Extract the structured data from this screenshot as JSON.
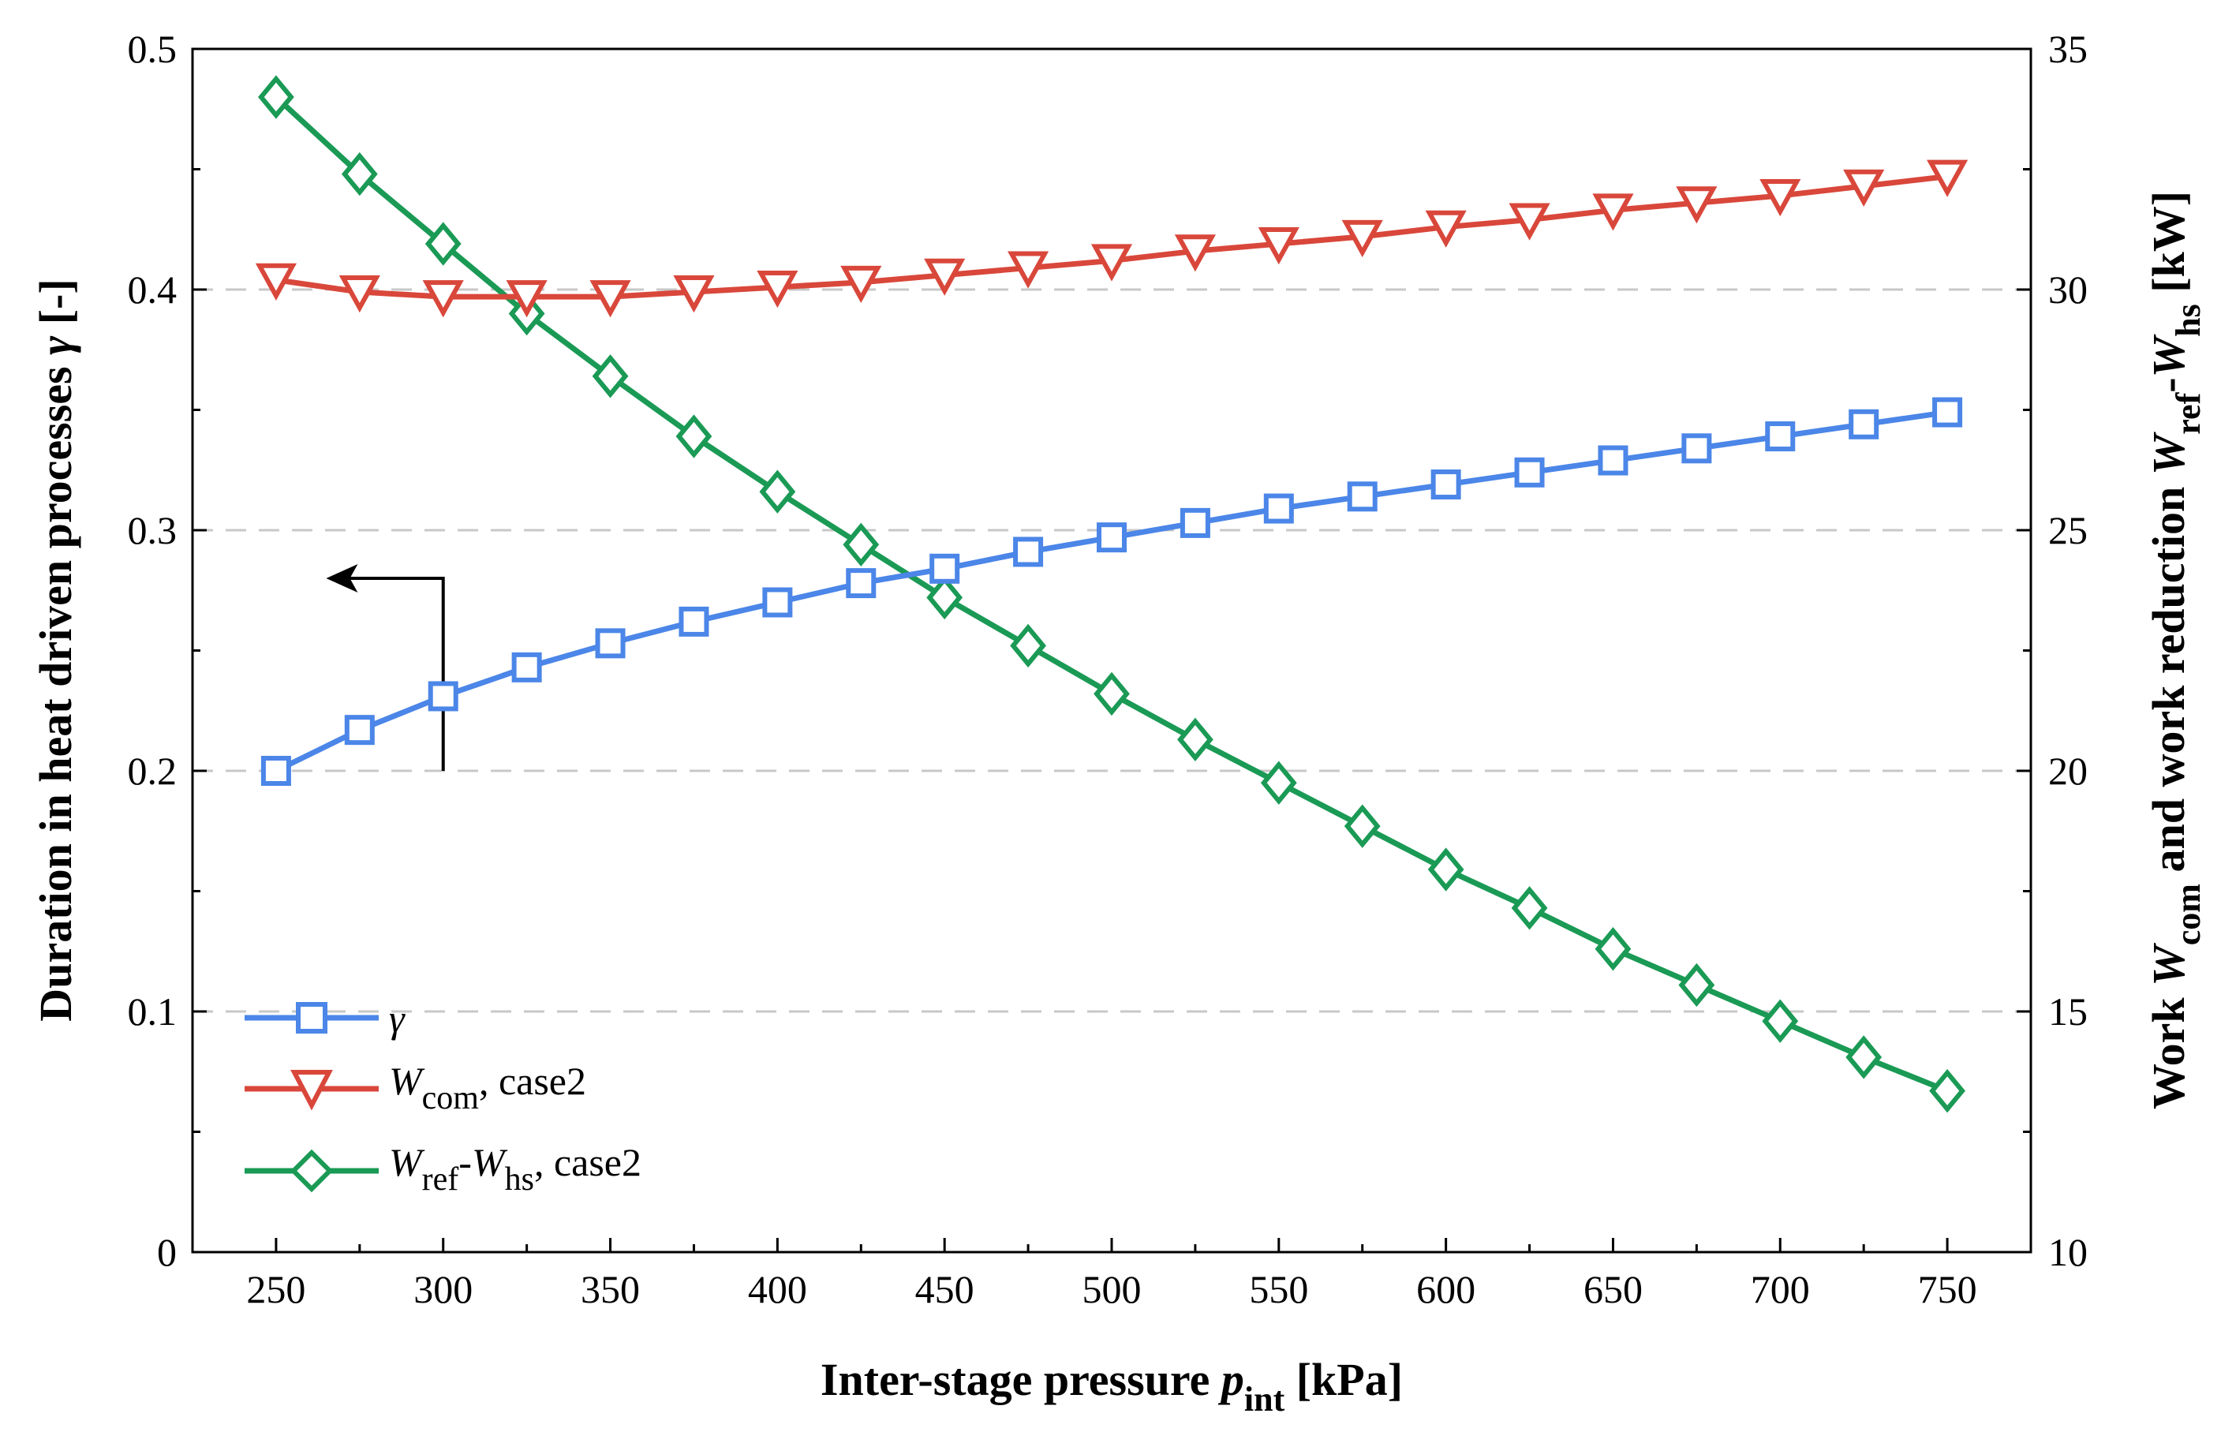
{
  "chart_data": {
    "type": "line",
    "x": [
      250,
      275,
      300,
      325,
      350,
      375,
      400,
      425,
      450,
      475,
      500,
      525,
      550,
      575,
      600,
      625,
      650,
      675,
      700,
      725,
      750
    ],
    "xlim": [
      225,
      775
    ],
    "xticks": [
      "250",
      "300",
      "350",
      "400",
      "450",
      "500",
      "550",
      "600",
      "650",
      "700",
      "750"
    ],
    "xlabel": {
      "main": "Inter-stage pressure ",
      "var": "p",
      "sub": "int",
      "unit": " [kPa]"
    },
    "y_left": {
      "lim": [
        0,
        0.5
      ],
      "ticks": [
        "0",
        "0.1",
        "0.2",
        "0.3",
        "0.4",
        "0.5"
      ],
      "label": {
        "main": "Duration in heat driven processes ",
        "var": "γ",
        "unit": " [-]"
      }
    },
    "y_right": {
      "lim": [
        10,
        35
      ],
      "ticks": [
        "10",
        "15",
        "20",
        "25",
        "30",
        "35"
      ],
      "label": {
        "part1": "Work ",
        "var1": "W",
        "sub1": "com",
        "part2": " and work reduction ",
        "var2": "W",
        "sub2": "ref",
        "dash": "-",
        "var3": "W",
        "sub3": "hs",
        "unit": " [kW]"
      }
    },
    "grid_y": [
      0.1,
      0.2,
      0.3,
      0.4
    ],
    "series": [
      {
        "name": "γ",
        "axis": "left",
        "marker": "square",
        "color": "#4b86e8",
        "values": [
          0.2,
          0.217,
          0.231,
          0.243,
          0.253,
          0.262,
          0.27,
          0.278,
          0.284,
          0.291,
          0.297,
          0.303,
          0.309,
          0.314,
          0.319,
          0.324,
          0.329,
          0.334,
          0.339,
          0.344,
          0.349
        ]
      },
      {
        "name": "Wcom, case2",
        "axis": "right",
        "marker": "triangle-down",
        "color": "#d9473b",
        "values": [
          30.2,
          29.95,
          29.85,
          29.85,
          29.85,
          29.95,
          30.05,
          30.15,
          30.3,
          30.45,
          30.6,
          30.8,
          30.95,
          31.1,
          31.3,
          31.45,
          31.65,
          31.8,
          31.95,
          32.15,
          32.35
        ]
      },
      {
        "name": "Wref-Whs, case2",
        "axis": "right",
        "marker": "diamond",
        "color": "#1a9a55",
        "values": [
          34.0,
          32.4,
          30.95,
          29.5,
          28.2,
          26.95,
          25.8,
          24.7,
          23.6,
          22.6,
          21.6,
          20.65,
          19.75,
          18.85,
          17.95,
          17.15,
          16.3,
          15.55,
          14.8,
          14.05,
          13.35
        ]
      }
    ],
    "legend": {
      "placement": "bottom-left",
      "items": [
        {
          "var": "γ",
          "sub": "",
          "text": ""
        },
        {
          "var": "W",
          "sub": "com",
          "text": ", case2"
        },
        {
          "var": "W",
          "sub": "ref",
          "dash": "-",
          "var2": "W",
          "sub2": "hs",
          "text": ", case2"
        }
      ]
    },
    "annotation": {
      "type": "axis-arrow",
      "points_to": "left",
      "x": 300,
      "y_from": 0.2,
      "y_to": 0.28,
      "x_end": 265
    }
  }
}
